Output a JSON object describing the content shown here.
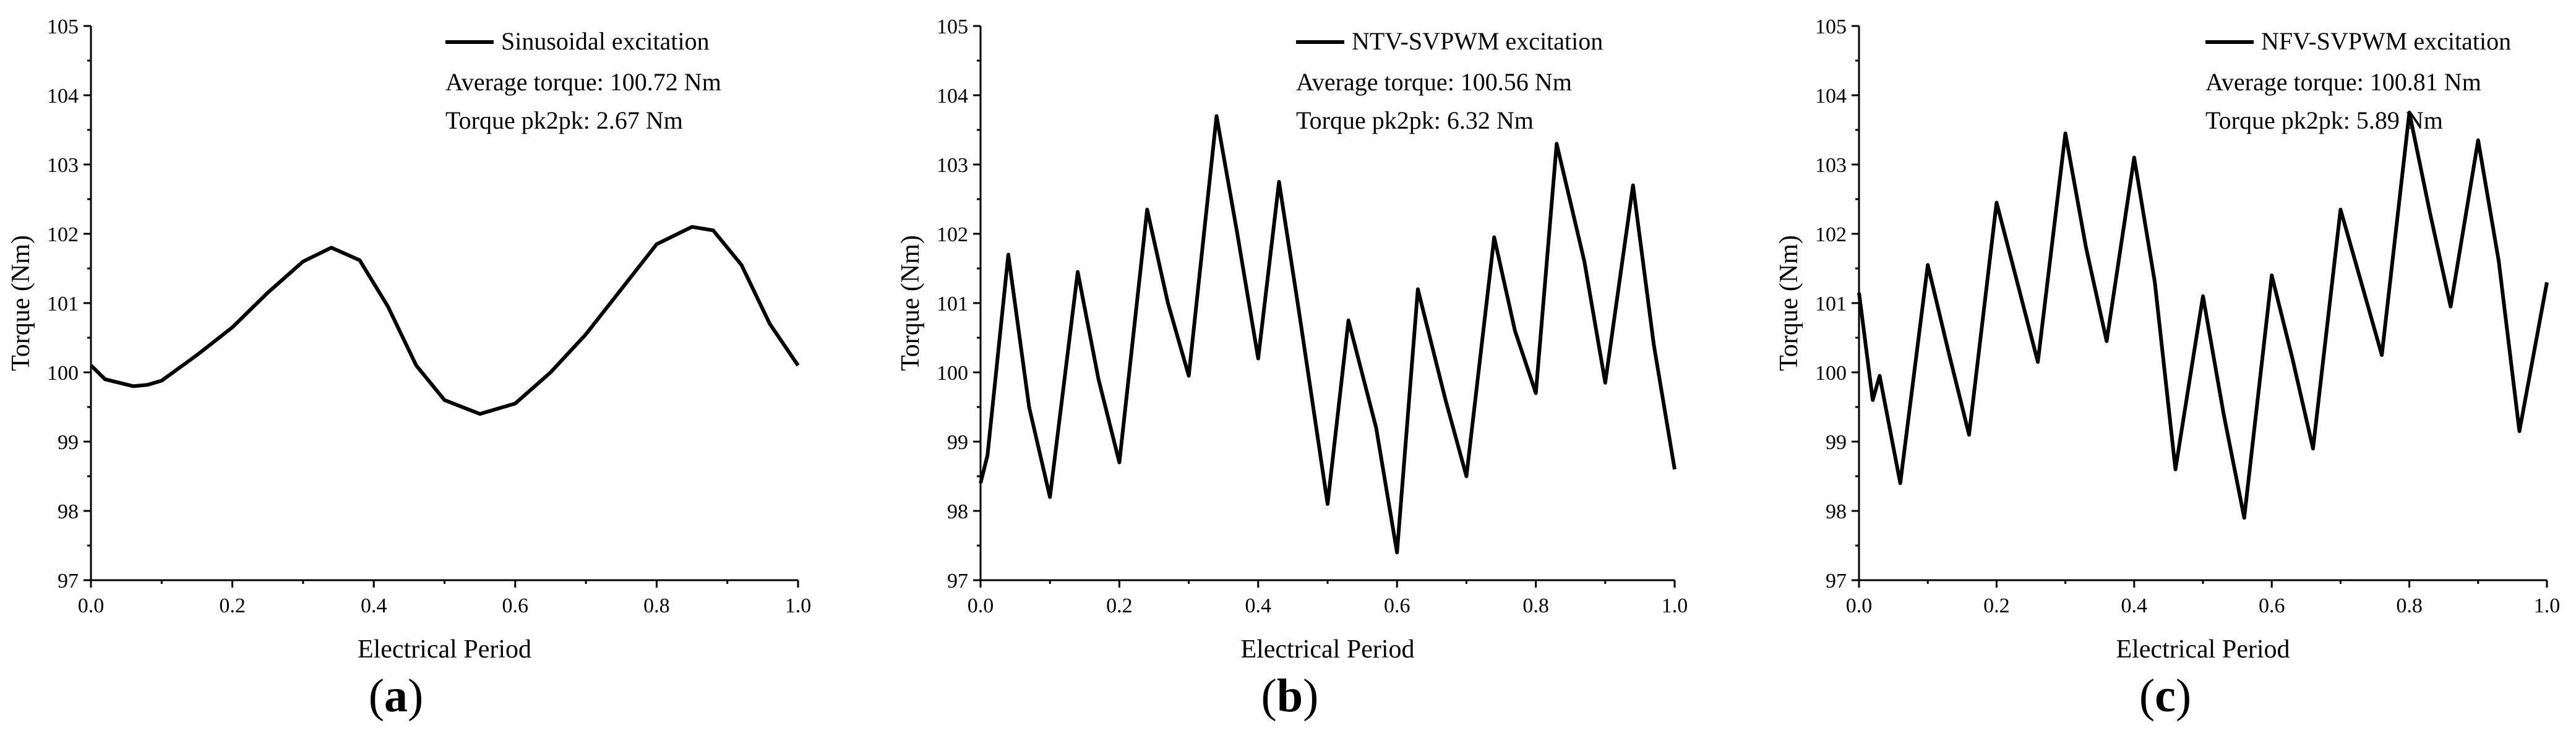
{
  "chart_data": [
    {
      "type": "line",
      "panel_label": "a",
      "xlabel": "Electrical Period",
      "ylabel": "Torque (Nm)",
      "xlim": [
        0,
        1
      ],
      "ylim": [
        97,
        105
      ],
      "xticks": [
        "0.0",
        "0.2",
        "0.4",
        "0.6",
        "0.8",
        "1.0"
      ],
      "yticks": [
        "97",
        "98",
        "99",
        "100",
        "101",
        "102",
        "103",
        "104",
        "105"
      ],
      "legend": "top-right",
      "series": [
        {
          "name": "Sinusoidal excitation",
          "x": [
            0,
            0.02,
            0.04,
            0.06,
            0.08,
            0.1,
            0.15,
            0.2,
            0.25,
            0.3,
            0.34,
            0.38,
            0.42,
            0.46,
            0.5,
            0.55,
            0.6,
            0.65,
            0.7,
            0.75,
            0.8,
            0.85,
            0.88,
            0.92,
            0.96,
            1.0
          ],
          "y": [
            100.1,
            99.9,
            99.85,
            99.8,
            99.82,
            99.88,
            100.25,
            100.65,
            101.15,
            101.6,
            101.8,
            101.62,
            100.95,
            100.1,
            99.6,
            99.4,
            99.55,
            100.0,
            100.55,
            101.2,
            101.85,
            102.1,
            102.05,
            101.55,
            100.7,
            100.1
          ]
        }
      ],
      "annotations": [
        "Average torque: 100.72 Nm",
        "Torque pk2pk: 2.67 Nm"
      ]
    },
    {
      "type": "line",
      "panel_label": "b",
      "xlabel": "Electrical Period",
      "ylabel": "Torque (Nm)",
      "xlim": [
        0,
        1
      ],
      "ylim": [
        97,
        105
      ],
      "xticks": [
        "0.0",
        "0.2",
        "0.4",
        "0.6",
        "0.8",
        "1.0"
      ],
      "yticks": [
        "97",
        "98",
        "99",
        "100",
        "101",
        "102",
        "103",
        "104",
        "105"
      ],
      "legend": "top-right",
      "series": [
        {
          "name": "NTV-SVPWM excitation",
          "x": [
            0,
            0.01,
            0.04,
            0.07,
            0.1,
            0.14,
            0.17,
            0.2,
            0.24,
            0.27,
            0.3,
            0.34,
            0.37,
            0.4,
            0.43,
            0.46,
            0.5,
            0.53,
            0.57,
            0.6,
            0.63,
            0.67,
            0.7,
            0.74,
            0.77,
            0.8,
            0.83,
            0.87,
            0.9,
            0.94,
            0.97,
            1.0
          ],
          "y": [
            98.4,
            98.8,
            101.7,
            99.5,
            98.2,
            101.45,
            99.9,
            98.7,
            102.35,
            101.0,
            99.95,
            103.7,
            102.0,
            100.2,
            102.75,
            100.8,
            98.1,
            100.75,
            99.2,
            97.4,
            101.2,
            99.6,
            98.5,
            101.95,
            100.6,
            99.7,
            103.3,
            101.6,
            99.85,
            102.7,
            100.4,
            98.6
          ]
        }
      ],
      "annotations": [
        "Average torque: 100.56 Nm",
        "Torque pk2pk: 6.32 Nm"
      ]
    },
    {
      "type": "line",
      "panel_label": "c",
      "xlabel": "Electrical Period",
      "ylabel": "Torque (Nm)",
      "xlim": [
        0,
        1
      ],
      "ylim": [
        97,
        105
      ],
      "xticks": [
        "0.0",
        "0.2",
        "0.4",
        "0.6",
        "0.8",
        "1.0"
      ],
      "yticks": [
        "97",
        "98",
        "99",
        "100",
        "101",
        "102",
        "103",
        "104",
        "105"
      ],
      "legend": "top-right",
      "series": [
        {
          "name": "NFV-SVPWM excitation",
          "x": [
            0,
            0.02,
            0.03,
            0.06,
            0.1,
            0.13,
            0.16,
            0.2,
            0.23,
            0.26,
            0.3,
            0.33,
            0.36,
            0.4,
            0.43,
            0.46,
            0.5,
            0.53,
            0.56,
            0.6,
            0.63,
            0.66,
            0.7,
            0.73,
            0.76,
            0.8,
            0.83,
            0.86,
            0.9,
            0.93,
            0.96,
            1.0
          ],
          "y": [
            101.15,
            99.6,
            99.95,
            98.4,
            101.55,
            100.3,
            99.1,
            102.45,
            101.3,
            100.15,
            103.45,
            101.8,
            100.45,
            103.1,
            101.3,
            98.6,
            101.1,
            99.4,
            97.9,
            101.4,
            100.2,
            98.9,
            102.35,
            101.3,
            100.25,
            103.75,
            102.3,
            100.95,
            103.35,
            101.6,
            99.15,
            101.3
          ]
        }
      ],
      "annotations": [
        "Average torque: 100.81 Nm",
        "Torque pk2pk: 5.89 Nm"
      ]
    }
  ]
}
